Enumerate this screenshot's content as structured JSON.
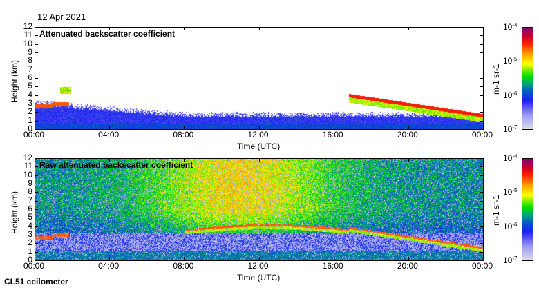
{
  "date": "12 Apr 2021",
  "footer": "CL51 ceilometer",
  "chart_data": [
    {
      "type": "heatmap",
      "title": "Attenuated backscatter coefficient",
      "xlabel": "Time (UTC)",
      "ylabel": "Height (km)",
      "xticks": [
        "00:00",
        "04:00",
        "08:00",
        "12:00",
        "16:00",
        "20:00",
        "00:00"
      ],
      "yticks": [
        "0",
        "1",
        "2",
        "3",
        "4",
        "5",
        "6",
        "7",
        "8",
        "9",
        "10",
        "11",
        "12"
      ],
      "xlim": [
        0,
        24
      ],
      "ylim": [
        0,
        12
      ],
      "colorbar": {
        "label": "m-1 sr-1",
        "ticks": [
          "10-7",
          "10-6",
          "10-5",
          "10-4"
        ],
        "range": [
          1e-07,
          0.0001
        ],
        "scale": "log"
      },
      "mode": "attenuated"
    },
    {
      "type": "heatmap",
      "title": "Raw attenuated backscatter coefficient",
      "xlabel": "Time (UTC)",
      "ylabel": "Height (km)",
      "xticks": [
        "00:00",
        "04:00",
        "08:00",
        "12:00",
        "16:00",
        "20:00",
        "00:00"
      ],
      "yticks": [
        "0",
        "1",
        "2",
        "3",
        "4",
        "5",
        "6",
        "7",
        "8",
        "9",
        "10",
        "11",
        "12"
      ],
      "xlim": [
        0,
        24
      ],
      "ylim": [
        0,
        12
      ],
      "colorbar": {
        "label": "m-1 sr-1",
        "ticks": [
          "10-7",
          "10-6",
          "10-5",
          "10-4"
        ],
        "range": [
          1e-07,
          0.0001
        ],
        "scale": "log"
      },
      "mode": "raw"
    }
  ]
}
